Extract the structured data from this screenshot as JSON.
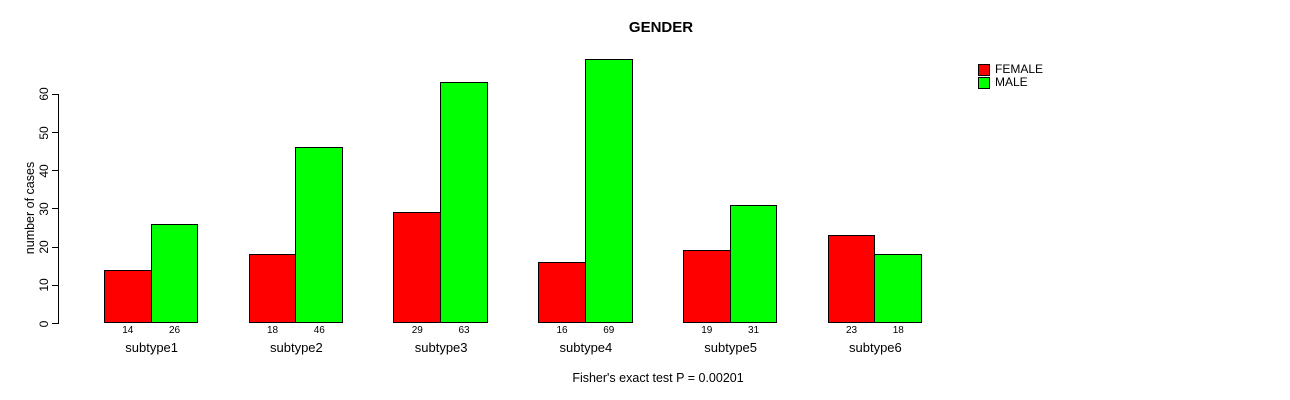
{
  "chart_data": {
    "type": "bar",
    "title": "GENDER",
    "ylabel": "number of cases",
    "xlabel": "",
    "caption": "Fisher's exact test P = 0.00201",
    "categories": [
      "subtype1",
      "subtype2",
      "subtype3",
      "subtype4",
      "subtype5",
      "subtype6"
    ],
    "series": [
      {
        "name": "FEMALE",
        "color": "#ff0000",
        "values": [
          14,
          18,
          29,
          16,
          19,
          23
        ]
      },
      {
        "name": "MALE",
        "color": "#00ff00",
        "values": [
          26,
          46,
          63,
          69,
          31,
          18
        ]
      }
    ],
    "yticks": [
      0,
      10,
      20,
      30,
      40,
      50,
      60
    ],
    "ylim": [
      0,
      72
    ],
    "grid": false,
    "legend_position": "top-right",
    "bar_value_labels_shown": true,
    "bar_border_color": "#000000",
    "background_color": "#ffffff",
    "text_color": "#000000"
  }
}
